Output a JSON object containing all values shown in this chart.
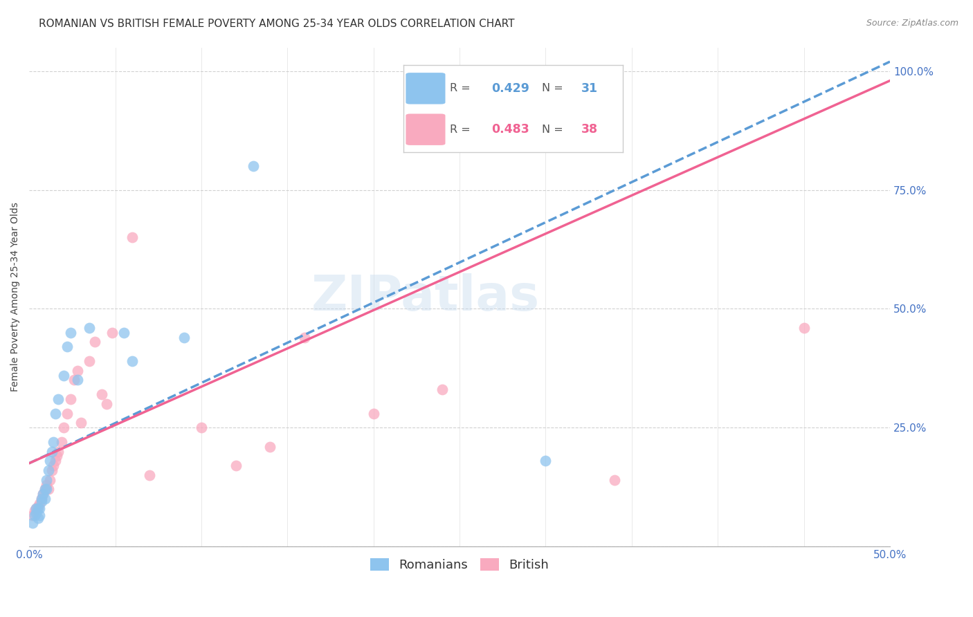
{
  "title": "ROMANIAN VS BRITISH FEMALE POVERTY AMONG 25-34 YEAR OLDS CORRELATION CHART",
  "source": "Source: ZipAtlas.com",
  "ylabel": "Female Poverty Among 25-34 Year Olds",
  "xlim": [
    0.0,
    0.5
  ],
  "ylim": [
    0.0,
    1.05
  ],
  "yticks": [
    0.0,
    0.25,
    0.5,
    0.75,
    1.0
  ],
  "yticklabels": [
    "",
    "25.0%",
    "50.0%",
    "75.0%",
    "100.0%"
  ],
  "romanian_R": 0.429,
  "romanian_N": 31,
  "british_R": 0.483,
  "british_N": 38,
  "romanian_color": "#8EC4EE",
  "british_color": "#F9AABF",
  "romanian_line_color": "#5B9BD5",
  "british_line_color": "#F06292",
  "watermark_text": "ZIPatlas",
  "romanian_x": [
    0.002,
    0.003,
    0.004,
    0.004,
    0.005,
    0.005,
    0.006,
    0.006,
    0.007,
    0.007,
    0.008,
    0.009,
    0.009,
    0.01,
    0.01,
    0.011,
    0.012,
    0.013,
    0.014,
    0.015,
    0.017,
    0.02,
    0.022,
    0.024,
    0.028,
    0.035,
    0.055,
    0.06,
    0.09,
    0.13,
    0.3
  ],
  "romanian_y": [
    0.05,
    0.065,
    0.07,
    0.08,
    0.06,
    0.08,
    0.065,
    0.08,
    0.095,
    0.1,
    0.11,
    0.1,
    0.12,
    0.12,
    0.14,
    0.16,
    0.18,
    0.2,
    0.22,
    0.28,
    0.31,
    0.36,
    0.42,
    0.45,
    0.35,
    0.46,
    0.45,
    0.39,
    0.44,
    0.8,
    0.18
  ],
  "british_x": [
    0.002,
    0.003,
    0.004,
    0.005,
    0.006,
    0.007,
    0.008,
    0.009,
    0.01,
    0.011,
    0.012,
    0.013,
    0.014,
    0.015,
    0.016,
    0.017,
    0.019,
    0.02,
    0.022,
    0.024,
    0.026,
    0.028,
    0.03,
    0.035,
    0.038,
    0.042,
    0.045,
    0.048,
    0.06,
    0.07,
    0.1,
    0.12,
    0.14,
    0.16,
    0.2,
    0.24,
    0.34,
    0.45
  ],
  "british_y": [
    0.065,
    0.075,
    0.08,
    0.085,
    0.09,
    0.1,
    0.11,
    0.12,
    0.13,
    0.12,
    0.14,
    0.16,
    0.17,
    0.18,
    0.19,
    0.2,
    0.22,
    0.25,
    0.28,
    0.31,
    0.35,
    0.37,
    0.26,
    0.39,
    0.43,
    0.32,
    0.3,
    0.45,
    0.65,
    0.15,
    0.25,
    0.17,
    0.21,
    0.44,
    0.28,
    0.33,
    0.14,
    0.46
  ],
  "rom_line_x": [
    0.0,
    0.5
  ],
  "rom_line_y": [
    0.175,
    1.02
  ],
  "brit_line_x": [
    0.0,
    0.5
  ],
  "brit_line_y": [
    0.175,
    0.98
  ],
  "title_fontsize": 11,
  "axis_label_fontsize": 10,
  "tick_fontsize": 11,
  "legend_fontsize": 13,
  "source_fontsize": 9,
  "marker_size": 130,
  "axis_color": "#4472C4",
  "grid_color": "#CCCCCC",
  "right_yaxis_color": "#4472C4"
}
